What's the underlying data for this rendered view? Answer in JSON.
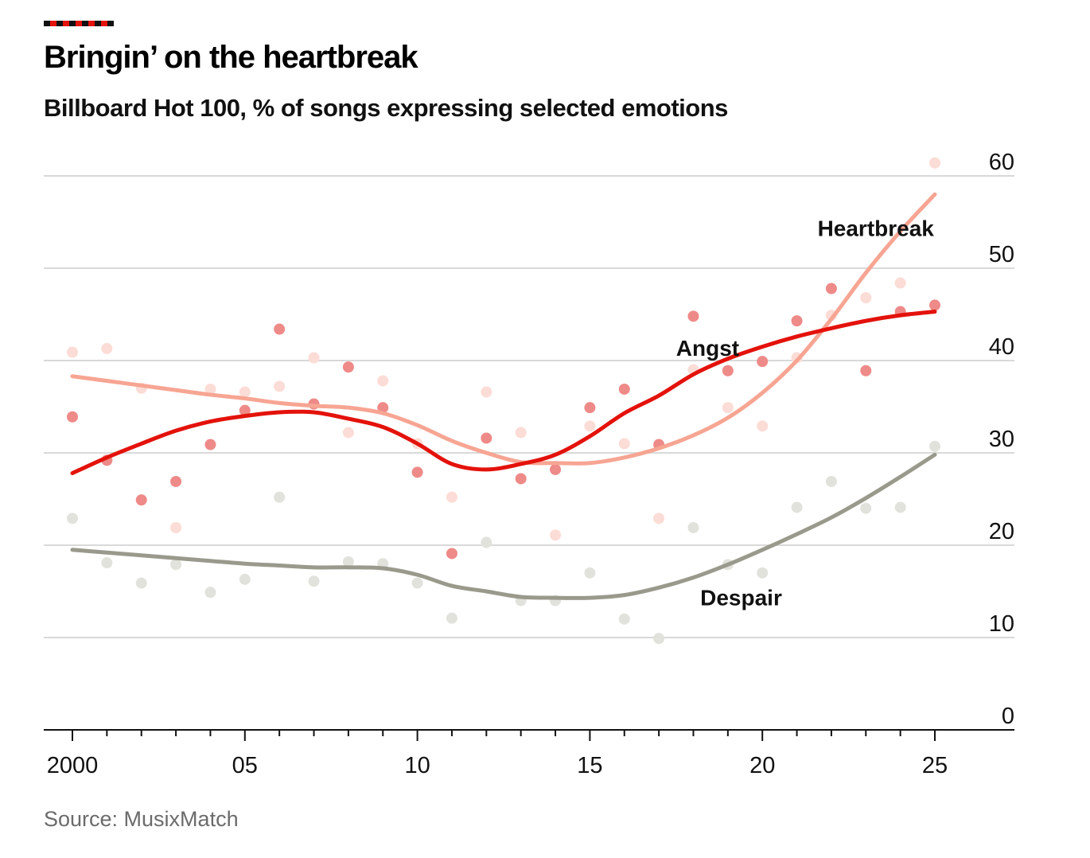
{
  "title": "Bringin’ on the heartbreak",
  "subtitle": "Billboard Hot 100, % of songs expressing selected emotions",
  "source": "Source: MusixMatch",
  "chart_data": {
    "type": "scatter",
    "title": "Bringin’ on the heartbreak",
    "subtitle": "Billboard Hot 100, % of songs expressing selected emotions",
    "xlabel": "",
    "ylabel": "",
    "xlim": [
      1999.2,
      2027.2
    ],
    "ylim": [
      0,
      60
    ],
    "yticks": [
      0,
      10,
      20,
      30,
      40,
      50,
      60
    ],
    "ytick_labels": [
      "0",
      "10",
      "20",
      "30",
      "40",
      "50",
      "60"
    ],
    "xticks": [
      2000,
      2005,
      2010,
      2015,
      2020,
      2025
    ],
    "xtick_labels": [
      "2000",
      "05",
      "10",
      "15",
      "20",
      "25"
    ],
    "grid": true,
    "y_axis_position": "right",
    "x": [
      2000,
      2001,
      2002,
      2003,
      2004,
      2005,
      2006,
      2007,
      2008,
      2009,
      2010,
      2011,
      2012,
      2013,
      2014,
      2015,
      2016,
      2017,
      2018,
      2019,
      2020,
      2021,
      2022,
      2023,
      2024,
      2025
    ],
    "series": [
      {
        "name": "Heartbreak",
        "color": "#f7a593",
        "dot_color": "#fcdcd6",
        "values": [
          40.9,
          41.3,
          37.0,
          21.9,
          36.9,
          36.6,
          37.2,
          40.3,
          32.2,
          37.8,
          31.0,
          25.2,
          36.6,
          32.2,
          21.1,
          32.9,
          31.0,
          22.9,
          39.0,
          34.9,
          32.9,
          40.3,
          44.9,
          46.8,
          48.4,
          61.4
        ],
        "trend": [
          38.3,
          37.8,
          37.3,
          36.8,
          36.3,
          35.9,
          35.4,
          35.1,
          34.9,
          34.3,
          33.0,
          31.3,
          30.0,
          29.0,
          28.9,
          28.9,
          29.5,
          30.5,
          31.9,
          33.8,
          36.5,
          40.0,
          44.5,
          49.5,
          54.0,
          58.0
        ],
        "label": "Heartbreak",
        "label_at": [
          2021.6,
          53.5
        ]
      },
      {
        "name": "Angst",
        "color": "#e3120b",
        "dot_color": "#ee8a88",
        "values": [
          33.9,
          29.2,
          24.9,
          26.9,
          30.9,
          34.6,
          43.4,
          35.3,
          39.3,
          34.9,
          27.9,
          19.1,
          31.6,
          27.2,
          28.2,
          34.9,
          36.9,
          30.9,
          44.8,
          38.9,
          39.9,
          44.3,
          47.8,
          38.9,
          45.3,
          46.0
        ],
        "trend": [
          27.8,
          29.5,
          31.0,
          32.4,
          33.4,
          34.0,
          34.4,
          34.4,
          33.7,
          32.8,
          31.0,
          28.8,
          28.2,
          28.8,
          29.8,
          31.8,
          34.3,
          36.2,
          38.5,
          40.2,
          41.5,
          42.6,
          43.5,
          44.3,
          44.9,
          45.3
        ],
        "label": "Angst",
        "label_at": [
          2017.5,
          40.5
        ]
      },
      {
        "name": "Despair",
        "color": "#999a8c",
        "dot_color": "#e2e2dc",
        "values": [
          22.9,
          18.1,
          15.9,
          17.9,
          14.9,
          16.3,
          25.2,
          16.1,
          18.2,
          18.0,
          15.9,
          12.1,
          20.3,
          14.0,
          14.0,
          17.0,
          12.0,
          9.9,
          21.9,
          17.9,
          17.0,
          24.1,
          26.9,
          24.0,
          24.1,
          30.7
        ],
        "trend": [
          19.5,
          19.2,
          18.9,
          18.6,
          18.3,
          18.0,
          17.8,
          17.6,
          17.6,
          17.5,
          16.8,
          15.6,
          15.0,
          14.4,
          14.3,
          14.3,
          14.6,
          15.4,
          16.5,
          17.9,
          19.5,
          21.2,
          23.0,
          25.1,
          27.4,
          29.8
        ],
        "label": "Despair",
        "label_at": [
          2018.2,
          13.5
        ]
      }
    ]
  }
}
